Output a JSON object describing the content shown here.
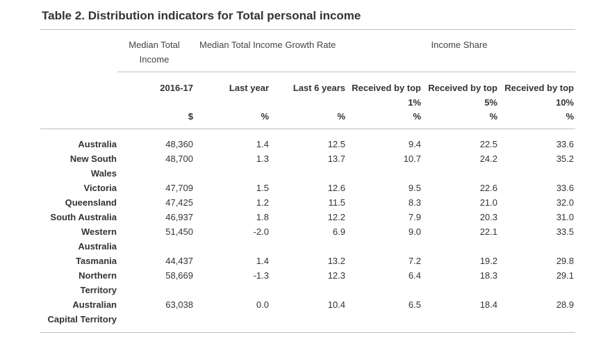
{
  "title": "Table 2. Distribution indicators for Total personal income",
  "groups": {
    "median_line1": "Median Total",
    "median_line2": "Income",
    "growth": "Median Total Income Growth Rate",
    "share": "Income Share"
  },
  "columns": [
    {
      "head1": "2016-17",
      "head2": "",
      "unit": "$"
    },
    {
      "head1": "Last year",
      "head2": "",
      "unit": "%"
    },
    {
      "head1": "Last 6 years",
      "head2": "",
      "unit": "%"
    },
    {
      "head1": "Received by top",
      "head2": "1%",
      "unit": "%"
    },
    {
      "head1": "Received by top",
      "head2": "5%",
      "unit": "%"
    },
    {
      "head1": "Received by top",
      "head2": "10%",
      "unit": "%"
    }
  ],
  "rows": [
    {
      "name1": "Australia",
      "name2": "",
      "values": [
        "48,360",
        "1.4",
        "12.5",
        "9.4",
        "22.5",
        "33.6"
      ]
    },
    {
      "name1": "New South",
      "name2": "Wales",
      "values": [
        "48,700",
        "1.3",
        "13.7",
        "10.7",
        "24.2",
        "35.2"
      ]
    },
    {
      "name1": "Victoria",
      "name2": "",
      "values": [
        "47,709",
        "1.5",
        "12.6",
        "9.5",
        "22.6",
        "33.6"
      ]
    },
    {
      "name1": "Queensland",
      "name2": "",
      "values": [
        "47,425",
        "1.2",
        "11.5",
        "8.3",
        "21.0",
        "32.0"
      ]
    },
    {
      "name1": "South Australia",
      "name2": "",
      "values": [
        "46,937",
        "1.8",
        "12.2",
        "7.9",
        "20.3",
        "31.0"
      ]
    },
    {
      "name1": "Western",
      "name2": "Australia",
      "values": [
        "51,450",
        "-2.0",
        "6.9",
        "9.0",
        "22.1",
        "33.5"
      ]
    },
    {
      "name1": "Tasmania",
      "name2": "",
      "values": [
        "44,437",
        "1.4",
        "13.2",
        "7.2",
        "19.2",
        "29.8"
      ]
    },
    {
      "name1": "Northern",
      "name2": "Territory",
      "values": [
        "58,669",
        "-1.3",
        "12.3",
        "6.4",
        "18.3",
        "29.1"
      ]
    },
    {
      "name1": "Australian",
      "name2": "Capital Territory",
      "values": [
        "63,038",
        "0.0",
        "10.4",
        "6.5",
        "18.4",
        "28.9"
      ]
    }
  ],
  "colors": {
    "text": "#333333",
    "rule": "#bdbdbd",
    "background": "#ffffff"
  }
}
